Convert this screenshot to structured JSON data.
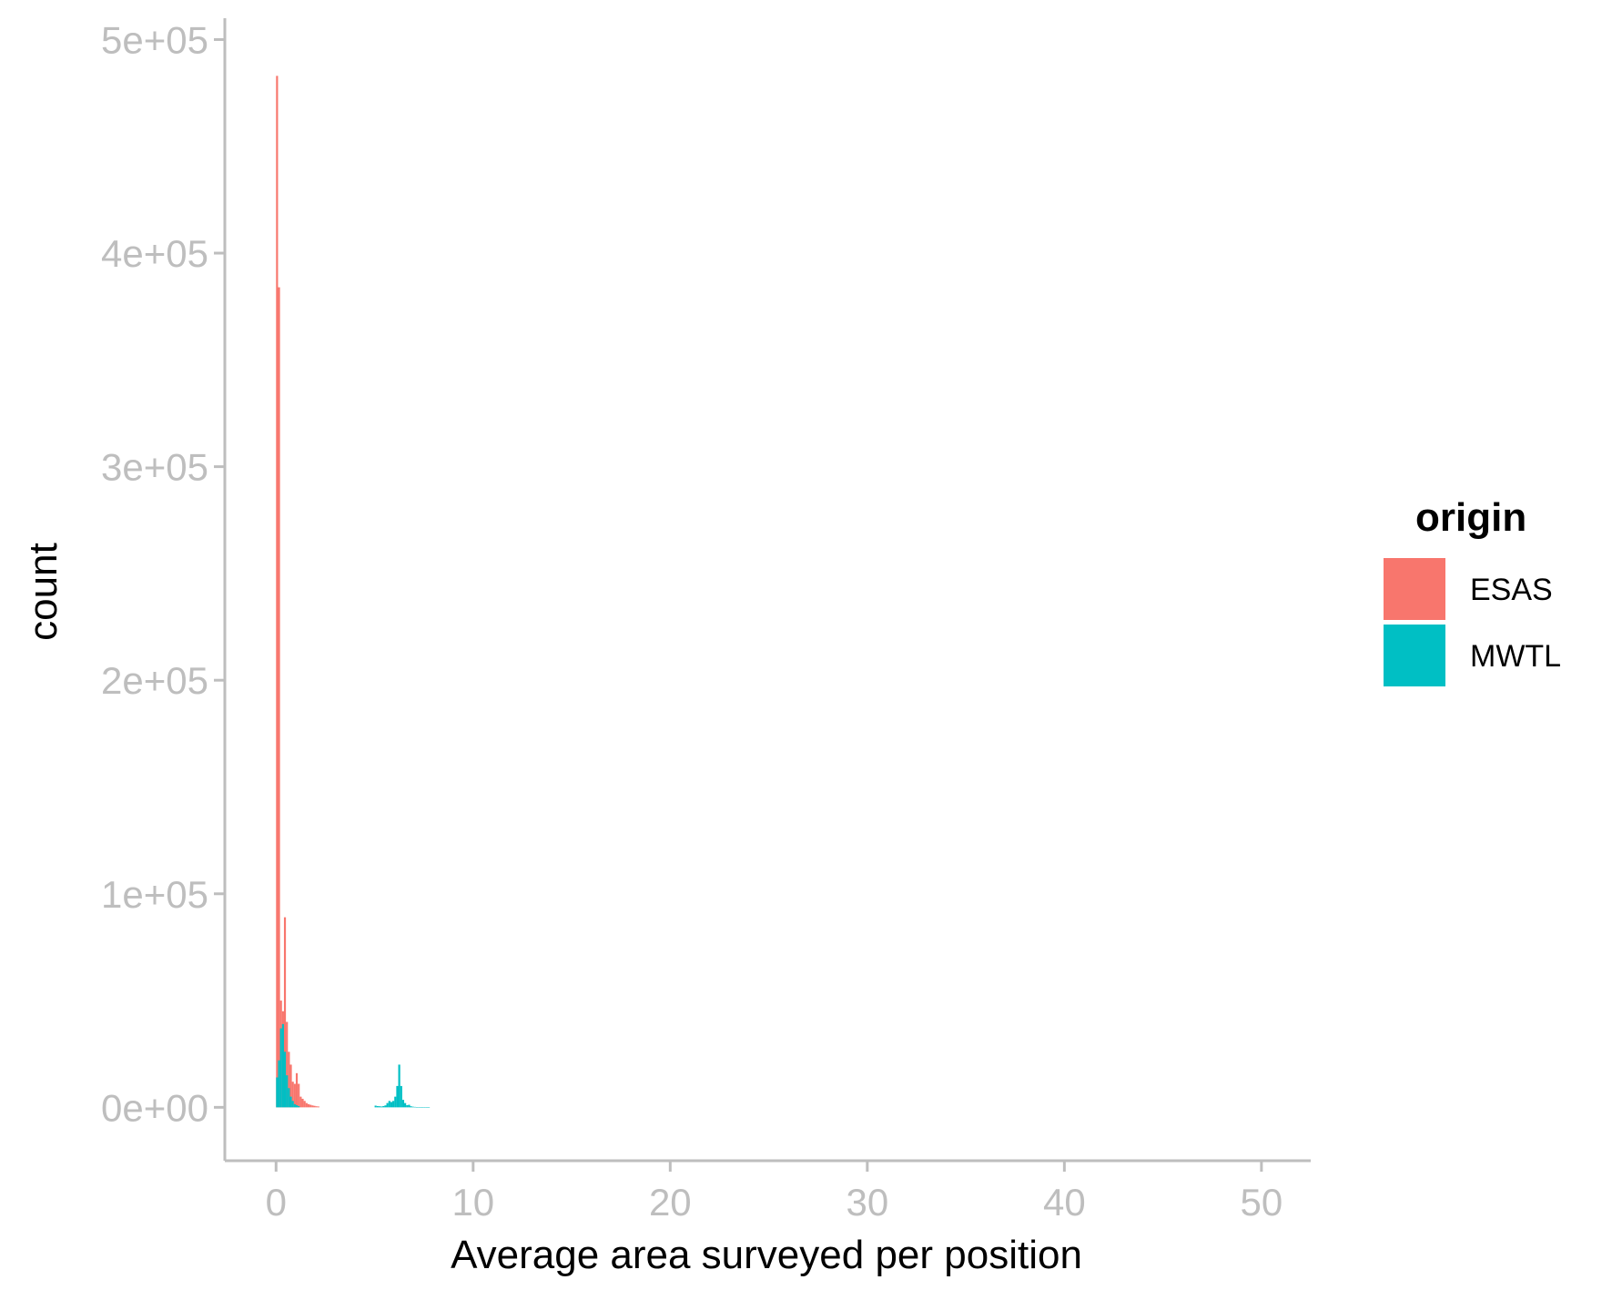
{
  "chart_data": {
    "type": "bar",
    "subtype": "histogram",
    "title": "",
    "xlabel": "Average area surveyed per position",
    "ylabel": "count",
    "xlim": [
      -2.6,
      52.5
    ],
    "ylim": [
      -25000,
      510000
    ],
    "x_ticks": [
      0,
      10,
      20,
      30,
      40,
      50
    ],
    "x_tick_labels": [
      "0",
      "10",
      "20",
      "30",
      "40",
      "50"
    ],
    "y_ticks": [
      0,
      100000,
      200000,
      300000,
      400000,
      500000
    ],
    "y_tick_labels": [
      "0e+00",
      "1e+05",
      "2e+05",
      "3e+05",
      "4e+05",
      "5e+05"
    ],
    "grid": false,
    "bin_width": 0.1,
    "legend": {
      "title": "origin",
      "position": "right"
    },
    "series": [
      {
        "name": "ESAS",
        "color": "#F8766D",
        "bins": [
          [
            0.0,
            483000
          ],
          [
            0.1,
            384000
          ],
          [
            0.2,
            50000
          ],
          [
            0.3,
            45000
          ],
          [
            0.4,
            89000
          ],
          [
            0.5,
            40000
          ],
          [
            0.6,
            26000
          ],
          [
            0.7,
            20000
          ],
          [
            0.8,
            12000
          ],
          [
            0.9,
            11000
          ],
          [
            1.0,
            16000
          ],
          [
            1.1,
            11000
          ],
          [
            1.2,
            5000
          ],
          [
            1.3,
            4000
          ],
          [
            1.4,
            3000
          ],
          [
            1.5,
            2000
          ],
          [
            1.6,
            1500
          ],
          [
            1.7,
            1200
          ],
          [
            1.8,
            900
          ],
          [
            1.9,
            700
          ],
          [
            2.0,
            500
          ],
          [
            2.1,
            400
          ]
        ]
      },
      {
        "name": "MWTL",
        "color": "#00BFC4",
        "bins": [
          [
            0.0,
            14000
          ],
          [
            0.1,
            22000
          ],
          [
            0.2,
            37000
          ],
          [
            0.3,
            39000
          ],
          [
            0.4,
            26000
          ],
          [
            0.5,
            15000
          ],
          [
            0.6,
            9000
          ],
          [
            0.7,
            5000
          ],
          [
            0.8,
            3000
          ],
          [
            0.9,
            1500
          ],
          [
            1.0,
            1000
          ],
          [
            1.1,
            600
          ],
          [
            5.0,
            800
          ],
          [
            5.1,
            600
          ],
          [
            5.2,
            500
          ],
          [
            5.3,
            400
          ],
          [
            5.4,
            600
          ],
          [
            5.5,
            900
          ],
          [
            5.6,
            2000
          ],
          [
            5.7,
            3000
          ],
          [
            5.8,
            2500
          ],
          [
            5.9,
            3000
          ],
          [
            6.0,
            5000
          ],
          [
            6.1,
            10000
          ],
          [
            6.2,
            20000
          ],
          [
            6.3,
            10000
          ],
          [
            6.4,
            3500
          ],
          [
            6.5,
            2000
          ],
          [
            6.6,
            1000
          ],
          [
            6.7,
            1200
          ],
          [
            6.8,
            500
          ],
          [
            6.9,
            300
          ],
          [
            7.0,
            200
          ],
          [
            7.1,
            150
          ],
          [
            7.2,
            150
          ],
          [
            7.3,
            150
          ],
          [
            7.4,
            150
          ],
          [
            7.5,
            150
          ],
          [
            7.6,
            150
          ],
          [
            7.7,
            150
          ]
        ]
      }
    ]
  }
}
